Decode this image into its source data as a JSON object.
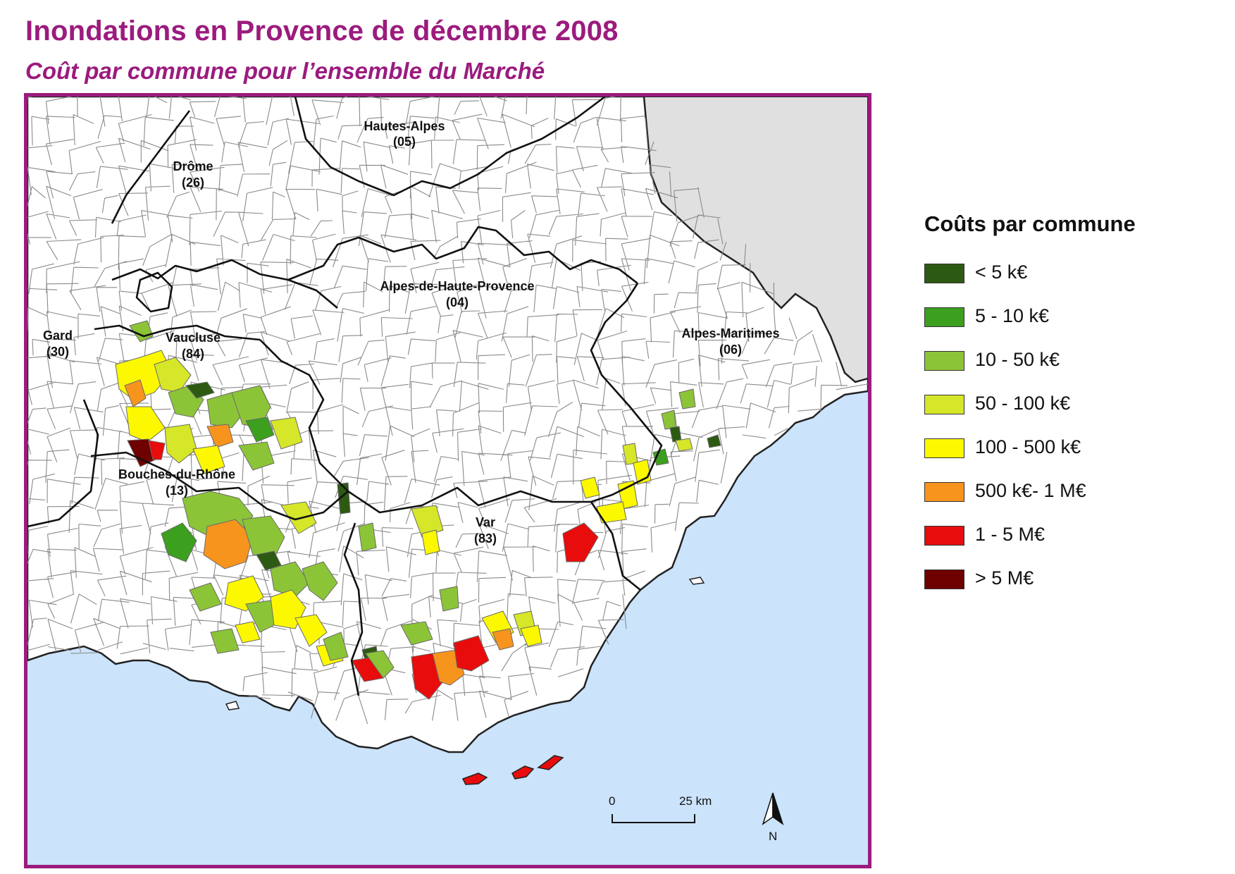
{
  "header": {
    "title": "Inondations en Provence de décembre 2008",
    "subtitle": "Coût par commune pour l’ensemble du Marché"
  },
  "map": {
    "sea_color": "#cbe3fb",
    "land_color": "#ffffff",
    "foreign_color": "#e0e0e0",
    "departments": [
      {
        "name": "Hautes-Alpes",
        "code": "(05)"
      },
      {
        "name": "Drôme",
        "code": "(26)"
      },
      {
        "name": "Alpes-de-Haute-Provence",
        "code": "(04)"
      },
      {
        "name": "Gard",
        "code": "(30)"
      },
      {
        "name": "Vaucluse",
        "code": "(84)"
      },
      {
        "name": "Alpes-Maritimes",
        "code": "(06)"
      },
      {
        "name": "Bouches-du-Rhône",
        "code": "(13)"
      },
      {
        "name": "Var",
        "code": "(83)"
      }
    ],
    "scale": {
      "start": "0",
      "end": "25 km"
    },
    "north_label": "N"
  },
  "legend": {
    "title": "Coûts par commune",
    "items": [
      {
        "label": "< 5 k€",
        "color": "#2d5a12"
      },
      {
        "label": "5 - 10 k€",
        "color": "#3c9f1e"
      },
      {
        "label": "10 - 50 k€",
        "color": "#8cc437"
      },
      {
        "label": "50 - 100 k€",
        "color": "#d6e629"
      },
      {
        "label": "100 - 500 k€",
        "color": "#fbf800"
      },
      {
        "label": "500 k€- 1 M€",
        "color": "#f7941d"
      },
      {
        "label": "1 - 5 M€",
        "color": "#e80c0c"
      },
      {
        "label": "> 5 M€",
        "color": "#6e0000"
      }
    ]
  }
}
